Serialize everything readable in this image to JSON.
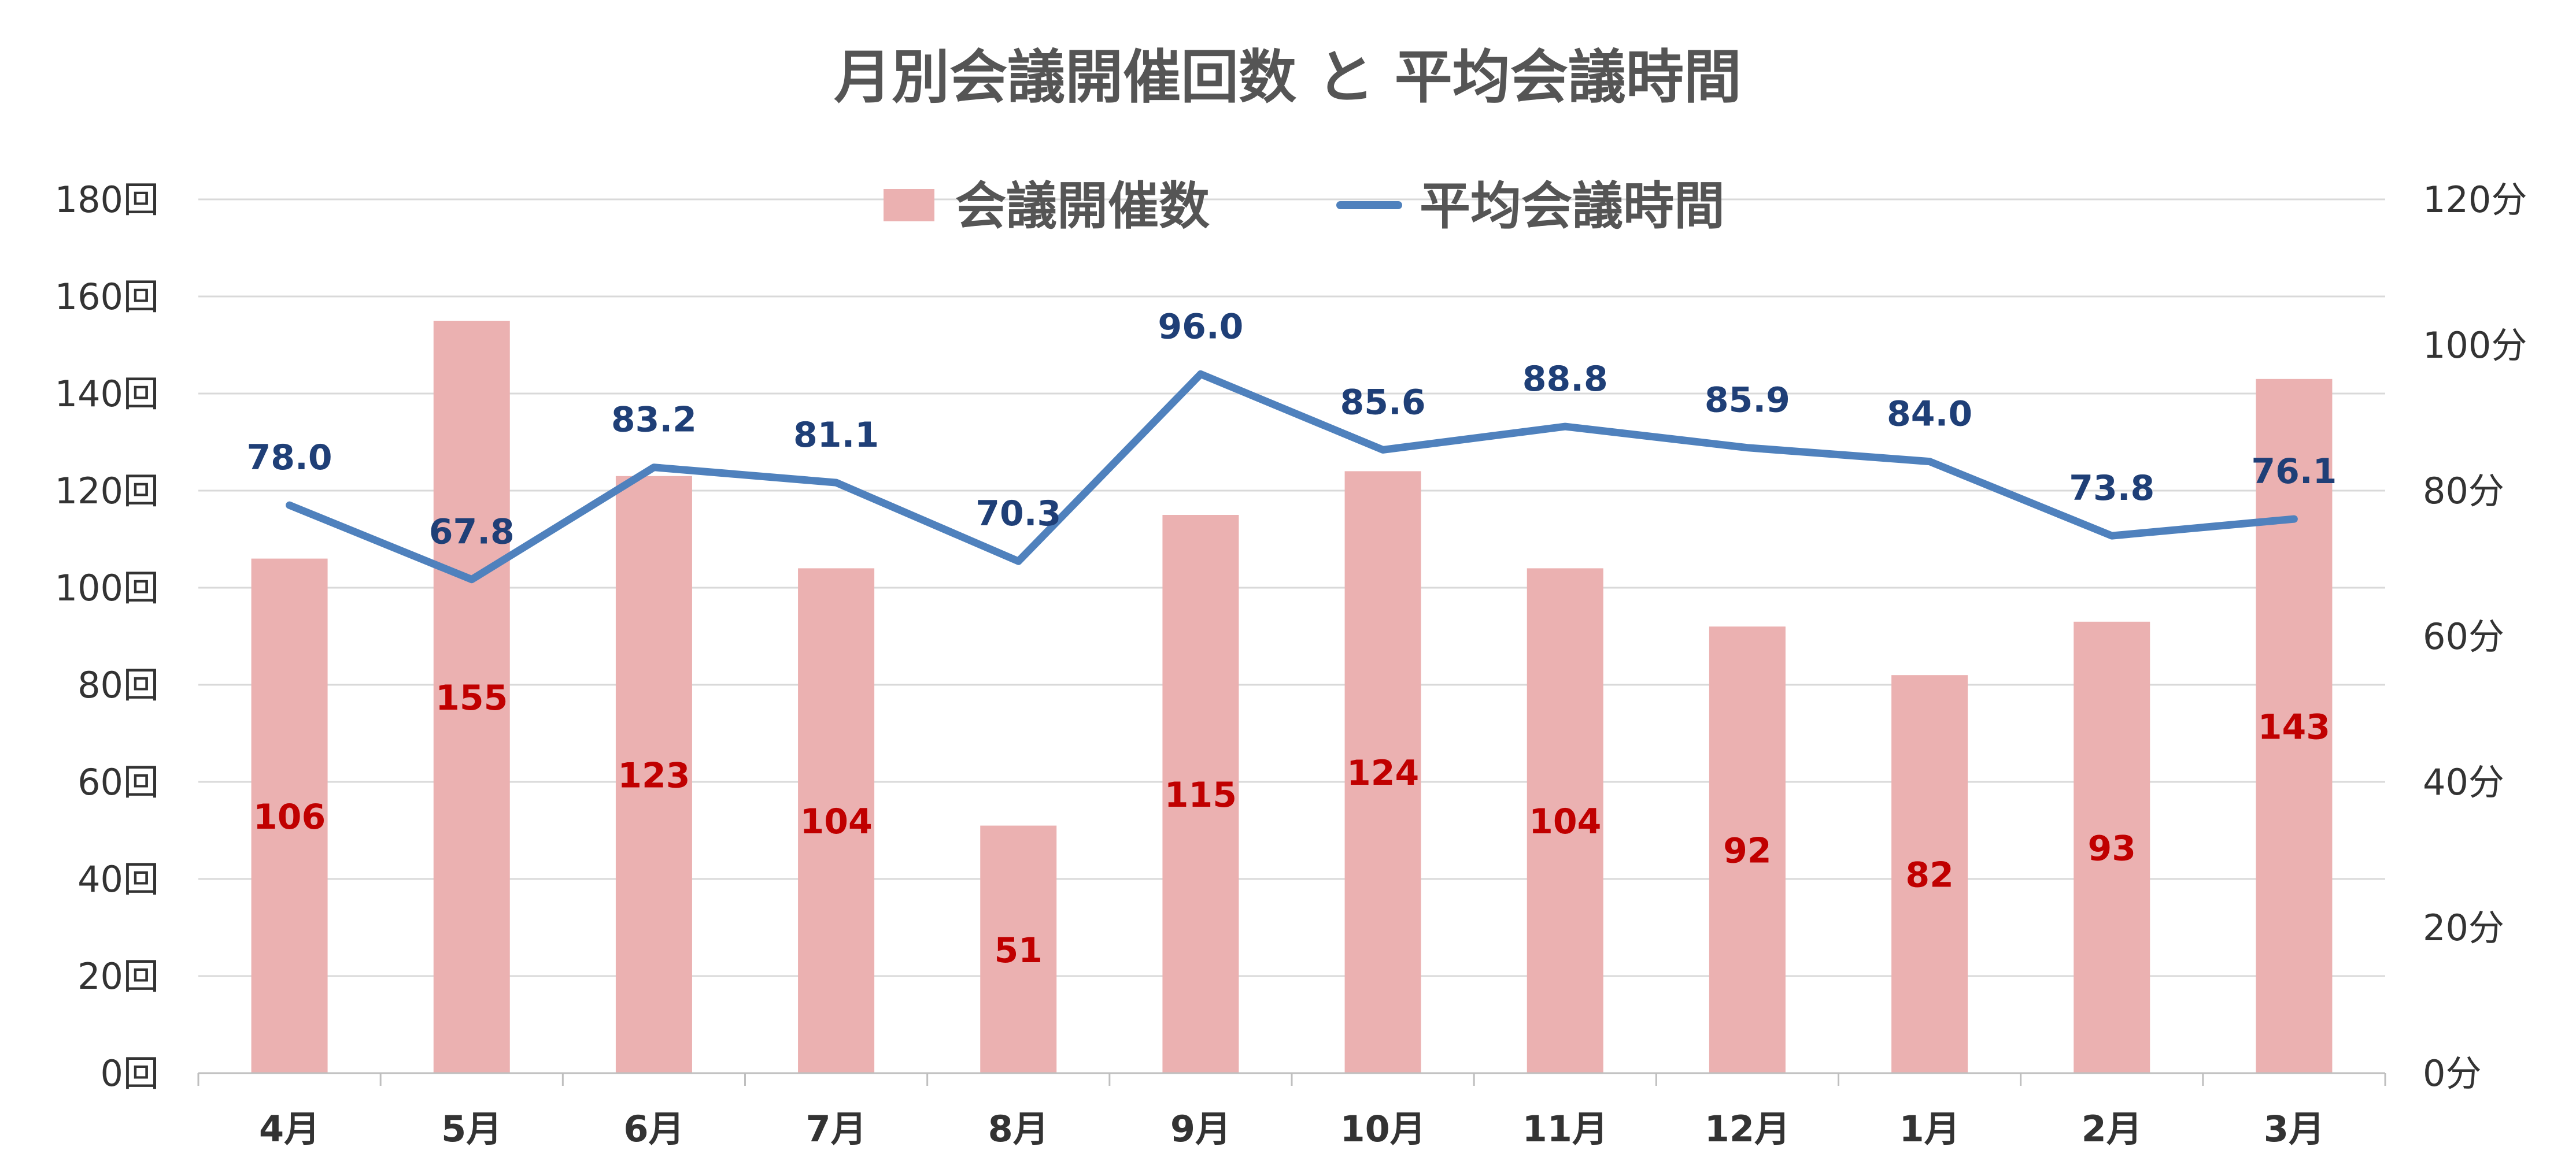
{
  "chart_data": {
    "type": "bar",
    "title": "月別会議開催回数 と 平均会議時間",
    "categories": [
      "4月",
      "5月",
      "6月",
      "7月",
      "8月",
      "9月",
      "10月",
      "11月",
      "12月",
      "1月",
      "2月",
      "3月"
    ],
    "series": [
      {
        "name": "会議開催数",
        "type": "bar",
        "axis": "left",
        "color": "#ebb1b1",
        "label_color": "#c00000",
        "values": [
          106,
          155,
          123,
          104,
          51,
          115,
          124,
          104,
          92,
          82,
          93,
          143
        ],
        "labels": [
          "106",
          "155",
          "123",
          "104",
          "51",
          "115",
          "124",
          "104",
          "92",
          "82",
          "93",
          "143"
        ]
      },
      {
        "name": "平均会議時間",
        "type": "line",
        "axis": "right",
        "color": "#4f81bd",
        "label_color": "#1f3f77",
        "values": [
          78.0,
          67.8,
          83.2,
          81.1,
          70.3,
          96.0,
          85.6,
          88.8,
          85.9,
          84.0,
          73.8,
          76.1
        ],
        "labels": [
          "78.0",
          "67.8",
          "83.2",
          "81.1",
          "70.3",
          "96.0",
          "85.6",
          "88.8",
          "85.9",
          "84.0",
          "73.8",
          "76.1"
        ]
      }
    ],
    "y_left": {
      "ylim": [
        0,
        180
      ],
      "ticks": [
        0,
        20,
        40,
        60,
        80,
        100,
        120,
        140,
        160,
        180
      ],
      "tick_labels": [
        "0回",
        "20回",
        "40回",
        "60回",
        "80回",
        "100回",
        "120回",
        "140回",
        "160回",
        "180回"
      ]
    },
    "y_right": {
      "ylim": [
        0,
        120
      ],
      "ticks": [
        0,
        20,
        40,
        60,
        80,
        100,
        120
      ],
      "tick_labels": [
        "0分",
        "20分",
        "40分",
        "60分",
        "80分",
        "100分",
        "120分"
      ]
    },
    "grid": true,
    "legend_position": "top-center"
  }
}
